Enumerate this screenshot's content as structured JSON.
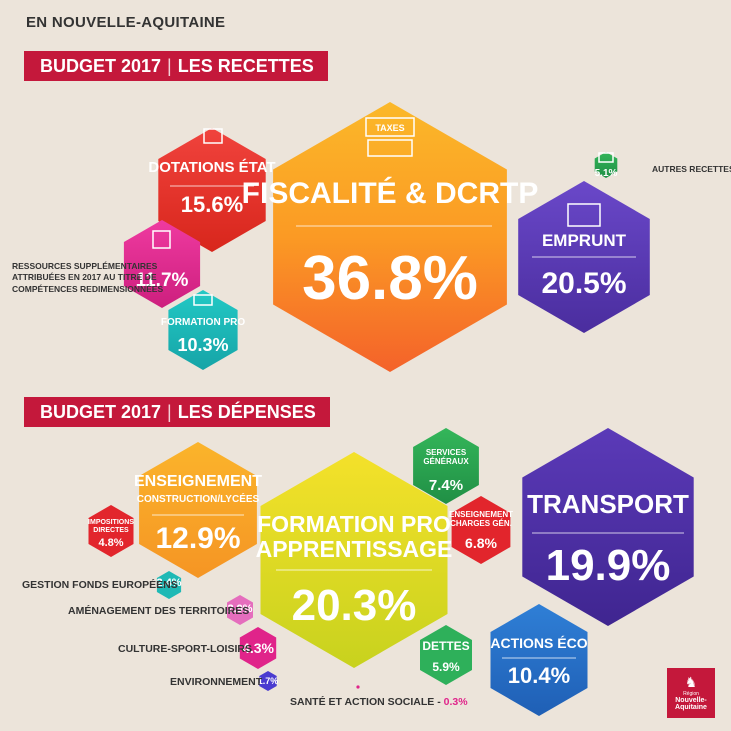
{
  "region": "EN NOUVELLE-AQUITAINE",
  "recettes_banner": {
    "year": "BUDGET 2017",
    "section": "LES RECETTES"
  },
  "depenses_banner": {
    "year": "BUDGET 2017",
    "section": "LES DÉPENSES"
  },
  "recettes": {
    "fiscalite": {
      "label": "FISCALITÉ & DCRTP",
      "value": "36.8%",
      "icon_text": "TAXES"
    },
    "emprunt": {
      "label": "EMPRUNT",
      "value": "20.5%"
    },
    "dotations": {
      "label": "DOTATIONS ÉTAT",
      "value": "15.6%"
    },
    "ressources": {
      "value": "11.7%",
      "caption": [
        "RESSOURCES SUPPLÉMENTAIRES",
        "ATTRIBUÉES EN 2017 AU TITRE DE",
        "COMPÉTENCES REDIMENSIONNÉES"
      ]
    },
    "formation": {
      "label": "FORMATION PRO",
      "value": "10.3%"
    },
    "autres": {
      "label": "AUTRES RECETTES",
      "value": "5.1%"
    }
  },
  "depenses": {
    "formation": {
      "label1": "FORMATION PRO",
      "label2": "APPRENTISSAGE",
      "value": "20.3%"
    },
    "transport": {
      "label": "TRANSPORT",
      "value": "19.9%"
    },
    "enseignement": {
      "label": "ENSEIGNEMENT",
      "sub": "CONSTRUCTION/LYCÉES",
      "value": "12.9%"
    },
    "actions_eco": {
      "label": "ACTIONS ÉCO",
      "value": "10.4%"
    },
    "services": {
      "label1": "SERVICES",
      "label2": "GÉNÉRAUX",
      "value": "7.4%"
    },
    "enseignement_charges": {
      "label1": "ENSEIGNEMENT",
      "label2": "CHARGES GÉN.",
      "value": "6.8%"
    },
    "dettes": {
      "label": "DETTES",
      "value": "5.9%"
    },
    "impositions": {
      "label1": "IMPOSITIONS",
      "label2": "DIRECTES",
      "value": "4.8%"
    },
    "culture": {
      "label": "CULTURE-SPORT-LOISIRS",
      "value": "4.3%"
    },
    "amenagement": {
      "label": "AMÉNAGEMENT DES TERRITOIRES",
      "value": "2.9%"
    },
    "fonds": {
      "label": "GESTION FONDS EUROPÉENS",
      "value": "2.4%"
    },
    "environnement": {
      "label": "ENVIRONNEMENT",
      "value": "1.7%"
    },
    "sante": {
      "label": "SANTÉ ET ACTION SOCIALE",
      "value": "0.3%"
    }
  },
  "logo": {
    "line1": "Région",
    "line2": "Nouvelle-",
    "line3": "Aquitaine"
  },
  "colors": {
    "background": "#ece4da",
    "banner": "#c4183b",
    "pink_accent": "#e0248a"
  }
}
